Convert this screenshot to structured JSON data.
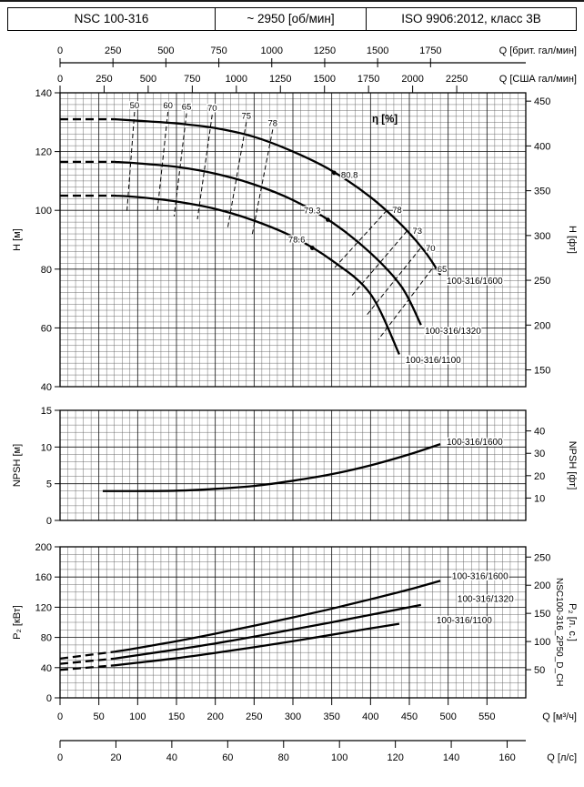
{
  "header": {
    "model": "NSC 100-316",
    "speed": "~ 2950 [об/мин]",
    "standard": "ISO 9906:2012, класс 3В"
  },
  "side_label": "NSC100-316_2P50_D_CH",
  "chart_data": {
    "type": "line",
    "title": "NSC 100-316 pump performance curves",
    "x": {
      "min": 0,
      "max": 600,
      "unit": "м³/ч",
      "minor_step": 10,
      "major_step": 50,
      "axes": [
        {
          "id": "q-imp-gpm",
          "label": "Q [брит. гал/мин]",
          "to_m3h": 0.27276,
          "position": "top",
          "ticks": [
            0,
            250,
            500,
            750,
            1000,
            1250,
            1500,
            1750
          ]
        },
        {
          "id": "q-us-gpm",
          "label": "Q [США гал/мин]",
          "to_m3h": 0.22712,
          "position": "top",
          "ticks": [
            0,
            250,
            500,
            750,
            1000,
            1250,
            1500,
            1750,
            2000,
            2250
          ]
        },
        {
          "id": "q-m3h",
          "label": "Q [м³/ч]",
          "to_m3h": 1,
          "position": "bottom",
          "ticks": [
            0,
            50,
            100,
            150,
            200,
            250,
            300,
            350,
            400,
            450,
            500,
            550
          ]
        },
        {
          "id": "q-ls",
          "label": "Q [л/с]",
          "to_m3h": 3.6,
          "position": "bottom",
          "ticks": [
            0,
            20,
            40,
            60,
            80,
            100,
            120,
            140,
            160
          ]
        }
      ]
    },
    "panels": [
      {
        "id": "head",
        "y_left": {
          "label": "H [м]",
          "min": 40,
          "max": 140,
          "ticks": [
            40,
            60,
            80,
            100,
            120,
            140
          ],
          "minor_step": 2
        },
        "y_right": {
          "label": "H [фт]",
          "per_si": 3.2808,
          "ticks": [
            150,
            200,
            250,
            300,
            350,
            400,
            450
          ]
        },
        "eta_title": {
          "text": "η [%]",
          "at": [
            402,
            130
          ]
        },
        "series": [
          {
            "name": "100-316/1600",
            "dash_until": 70,
            "label_at": [
              498,
              75
            ],
            "points": [
              [
                0,
                131
              ],
              [
                70,
                131
              ],
              [
                100,
                130.5
              ],
              [
                150,
                129.6
              ],
              [
                200,
                128
              ],
              [
                250,
                125
              ],
              [
                300,
                120
              ],
              [
                350,
                113.5
              ],
              [
                400,
                104.5
              ],
              [
                440,
                95
              ],
              [
                470,
                86
              ],
              [
                490,
                78
              ]
            ]
          },
          {
            "name": "100-316/1320",
            "dash_until": 70,
            "label_at": [
              470,
              58
            ],
            "points": [
              [
                0,
                116.5
              ],
              [
                70,
                116.5
              ],
              [
                100,
                116
              ],
              [
                150,
                114.8
              ],
              [
                200,
                112.5
              ],
              [
                250,
                108.8
              ],
              [
                300,
                103.5
              ],
              [
                350,
                96
              ],
              [
                400,
                85.5
              ],
              [
                440,
                74
              ],
              [
                465,
                61
              ]
            ]
          },
          {
            "name": "100-316/1100",
            "dash_until": 70,
            "label_at": [
              445,
              48
            ],
            "points": [
              [
                0,
                105
              ],
              [
                70,
                105
              ],
              [
                100,
                104.5
              ],
              [
                150,
                103
              ],
              [
                200,
                100.5
              ],
              [
                250,
                96.5
              ],
              [
                300,
                91
              ],
              [
                350,
                83
              ],
              [
                400,
                71.5
              ],
              [
                437,
                51
              ]
            ]
          }
        ],
        "eta_lines": [
          {
            "label": "50",
            "from": [
              96,
              133.5
            ],
            "to": [
              86,
              99
            ],
            "label_side": "top"
          },
          {
            "label": "60",
            "from": [
              139,
              133.5
            ],
            "to": [
              125,
              99
            ],
            "label_side": "top"
          },
          {
            "label": "65",
            "from": [
              163,
              133
            ],
            "to": [
              147,
              98
            ],
            "label_side": "top"
          },
          {
            "label": "70",
            "from": [
              196,
              132.5
            ],
            "to": [
              177,
              97
            ],
            "label_side": "top"
          },
          {
            "label": "75",
            "from": [
              240,
              130
            ],
            "to": [
              216,
              94
            ],
            "label_side": "top"
          },
          {
            "label": "78",
            "from": [
              274,
              127.5
            ],
            "to": [
              247,
              91
            ],
            "label_side": "top"
          },
          {
            "label": "78",
            "from": [
              421,
              100
            ],
            "to": [
              352,
              80
            ],
            "label_side": "right"
          },
          {
            "label": "73",
            "from": [
              447,
              93
            ],
            "to": [
              376,
              71
            ],
            "label_side": "right"
          },
          {
            "label": "70",
            "from": [
              464,
              87
            ],
            "to": [
              394,
              64
            ],
            "label_side": "right"
          },
          {
            "label": "65",
            "from": [
              479,
              80
            ],
            "to": [
              410,
              56
            ],
            "label_side": "right"
          }
        ],
        "bep_points": [
          {
            "label": "80.8",
            "dot": [
              353,
              112.8
            ],
            "label_at": [
              362,
              111
            ]
          },
          {
            "label": "79.3",
            "dot": [
              345,
              96.8
            ],
            "label_at": [
              314,
              99
            ]
          },
          {
            "label": "78.6",
            "dot": [
              325,
              87.2
            ],
            "label_at": [
              294,
              89
            ]
          }
        ]
      },
      {
        "id": "npsh",
        "y_left": {
          "label": "NPSH [м]",
          "min": 0,
          "max": 15,
          "ticks": [
            0,
            5,
            10,
            15
          ],
          "minor_step": 1
        },
        "y_right": {
          "label": "NPSH [фт]",
          "per_si": 3.2808,
          "ticks": [
            10,
            20,
            30,
            40
          ]
        },
        "series": [
          {
            "name": "100-316/1600",
            "label_at": [
              498,
              10.3
            ],
            "points": [
              [
                55,
                4
              ],
              [
                100,
                4
              ],
              [
                150,
                4.05
              ],
              [
                200,
                4.3
              ],
              [
                250,
                4.7
              ],
              [
                300,
                5.4
              ],
              [
                350,
                6.3
              ],
              [
                400,
                7.5
              ],
              [
                450,
                9
              ],
              [
                490,
                10.4
              ]
            ]
          }
        ]
      },
      {
        "id": "power",
        "y_left": {
          "label": "P₂ [кВт]",
          "min": 0,
          "max": 200,
          "ticks": [
            0,
            40,
            80,
            120,
            160,
            200
          ],
          "minor_step": 10
        },
        "y_right": {
          "label": "P₂ [л. с.]",
          "per_si": 1.341,
          "ticks": [
            50,
            100,
            150,
            200,
            250
          ]
        },
        "series": [
          {
            "name": "100-316/1600",
            "dash_until": 70,
            "label_at": [
              505,
              157
            ],
            "points": [
              [
                0,
                52
              ],
              [
                70,
                61
              ],
              [
                100,
                66
              ],
              [
                150,
                75
              ],
              [
                200,
                85
              ],
              [
                250,
                95.5
              ],
              [
                300,
                106.5
              ],
              [
                350,
                118
              ],
              [
                400,
                130.5
              ],
              [
                450,
                143.5
              ],
              [
                490,
                155
              ]
            ]
          },
          {
            "name": "100-316/1320",
            "dash_until": 70,
            "label_at": [
              512,
              127
            ],
            "points": [
              [
                0,
                45
              ],
              [
                70,
                52
              ],
              [
                100,
                56.5
              ],
              [
                150,
                64
              ],
              [
                200,
                72
              ],
              [
                250,
                81
              ],
              [
                300,
                90.5
              ],
              [
                350,
                100
              ],
              [
                400,
                110
              ],
              [
                440,
                118
              ],
              [
                465,
                123
              ]
            ]
          },
          {
            "name": "100-316/1100",
            "dash_until": 70,
            "label_at": [
              485,
              99
            ],
            "points": [
              [
                0,
                37
              ],
              [
                70,
                43
              ],
              [
                100,
                46.5
              ],
              [
                150,
                52.5
              ],
              [
                200,
                59.5
              ],
              [
                250,
                67
              ],
              [
                300,
                75
              ],
              [
                350,
                83.5
              ],
              [
                400,
                92
              ],
              [
                437,
                98
              ]
            ]
          }
        ]
      }
    ]
  }
}
